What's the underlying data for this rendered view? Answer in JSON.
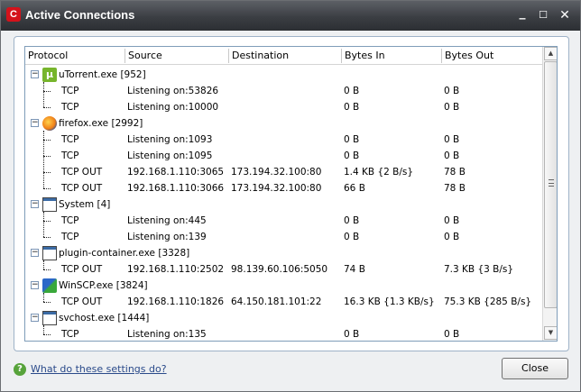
{
  "window": {
    "title": "Active Connections"
  },
  "columns": {
    "protocol": "Protocol",
    "source": "Source",
    "destination": "Destination",
    "bytes_in": "Bytes In",
    "bytes_out": "Bytes Out"
  },
  "processes": [
    {
      "name": "uTorrent.exe [952]",
      "icon": "utorrent-icon",
      "connections": [
        {
          "protocol": "TCP",
          "source": "Listening on:53826",
          "destination": "",
          "bytes_in": "0 B",
          "bytes_out": "0 B"
        },
        {
          "protocol": "TCP",
          "source": "Listening on:10000",
          "destination": "",
          "bytes_in": "0 B",
          "bytes_out": "0 B"
        }
      ]
    },
    {
      "name": "firefox.exe [2992]",
      "icon": "firefox-icon",
      "connections": [
        {
          "protocol": "TCP",
          "source": "Listening on:1093",
          "destination": "",
          "bytes_in": "0 B",
          "bytes_out": "0 B"
        },
        {
          "protocol": "TCP",
          "source": "Listening on:1095",
          "destination": "",
          "bytes_in": "0 B",
          "bytes_out": "0 B"
        },
        {
          "protocol": "TCP OUT",
          "source": "192.168.1.110:3065",
          "destination": "173.194.32.100:80",
          "bytes_in": "1.4 KB {2 B/s}",
          "bytes_out": "78 B"
        },
        {
          "protocol": "TCP OUT",
          "source": "192.168.1.110:3066",
          "destination": "173.194.32.100:80",
          "bytes_in": "66 B",
          "bytes_out": "78 B"
        }
      ]
    },
    {
      "name": "System [4]",
      "icon": "system-window-icon",
      "connections": [
        {
          "protocol": "TCP",
          "source": "Listening on:445",
          "destination": "",
          "bytes_in": "0 B",
          "bytes_out": "0 B"
        },
        {
          "protocol": "TCP",
          "source": "Listening on:139",
          "destination": "",
          "bytes_in": "0 B",
          "bytes_out": "0 B"
        }
      ]
    },
    {
      "name": "plugin-container.exe [3328]",
      "icon": "plugin-window-icon",
      "connections": [
        {
          "protocol": "TCP OUT",
          "source": "192.168.1.110:2502",
          "destination": "98.139.60.106:5050",
          "bytes_in": "74 B",
          "bytes_out": "7.3 KB {3 B/s}"
        }
      ]
    },
    {
      "name": "WinSCP.exe [3824]",
      "icon": "winscp-icon",
      "connections": [
        {
          "protocol": "TCP OUT",
          "source": "192.168.1.110:1826",
          "destination": "64.150.181.101:22",
          "bytes_in": "16.3 KB {1.3 KB/s}",
          "bytes_out": "75.3 KB {285 B/s}"
        }
      ]
    },
    {
      "name": "svchost.exe [1444]",
      "icon": "svchost-window-icon",
      "connections": [
        {
          "protocol": "TCP",
          "source": "Listening on:135",
          "destination": "",
          "bytes_in": "0 B",
          "bytes_out": "0 B"
        }
      ]
    }
  ],
  "footer": {
    "help_link": "What do these settings do?",
    "close_label": "Close"
  },
  "colors": {
    "title_bar": "#3b3e43",
    "brand": "#d4121b",
    "link": "#2a4a8a"
  }
}
